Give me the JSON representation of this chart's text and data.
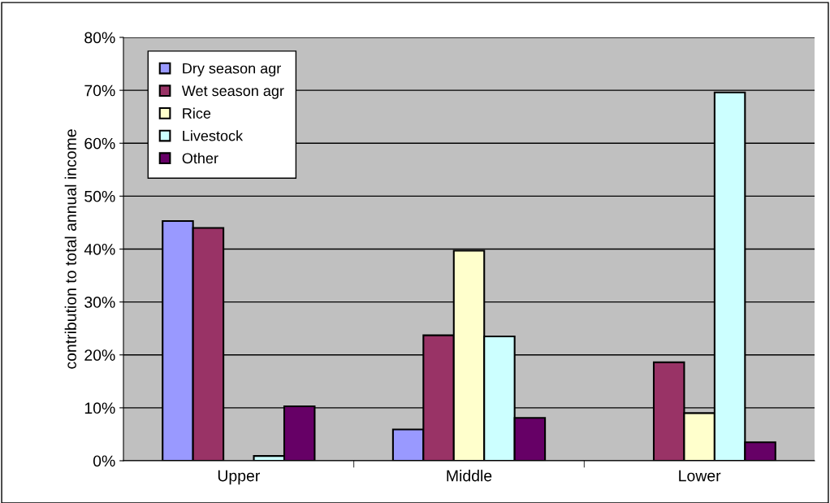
{
  "chart_data": {
    "type": "bar",
    "ylabel": "contribution to total annual income",
    "categories": [
      "Upper",
      "Middle",
      "Lower"
    ],
    "series": [
      {
        "name": "Dry season agr",
        "color": "#9999ff",
        "values": [
          45.3,
          5.9,
          null
        ]
      },
      {
        "name": "Wet season agr",
        "color": "#993366",
        "values": [
          44.0,
          23.7,
          18.6
        ]
      },
      {
        "name": "Rice",
        "color": "#ffffcc",
        "values": [
          null,
          39.7,
          9.0
        ]
      },
      {
        "name": "Livestock",
        "color": "#ccffff",
        "values": [
          0.9,
          23.5,
          69.6
        ]
      },
      {
        "name": "Other",
        "color": "#660066",
        "values": [
          10.3,
          8.1,
          3.5
        ]
      }
    ],
    "ylim": [
      0,
      80
    ],
    "yticks": [
      {
        "value": 0,
        "label": "0%"
      },
      {
        "value": 10,
        "label": "10%"
      },
      {
        "value": 20,
        "label": "20%"
      },
      {
        "value": 30,
        "label": "30%"
      },
      {
        "value": 40,
        "label": "40%"
      },
      {
        "value": 50,
        "label": "50%"
      },
      {
        "value": 60,
        "label": "60%"
      },
      {
        "value": 70,
        "label": "70%"
      },
      {
        "value": 80,
        "label": "80%"
      }
    ],
    "grid": "y",
    "legend": "top left"
  }
}
